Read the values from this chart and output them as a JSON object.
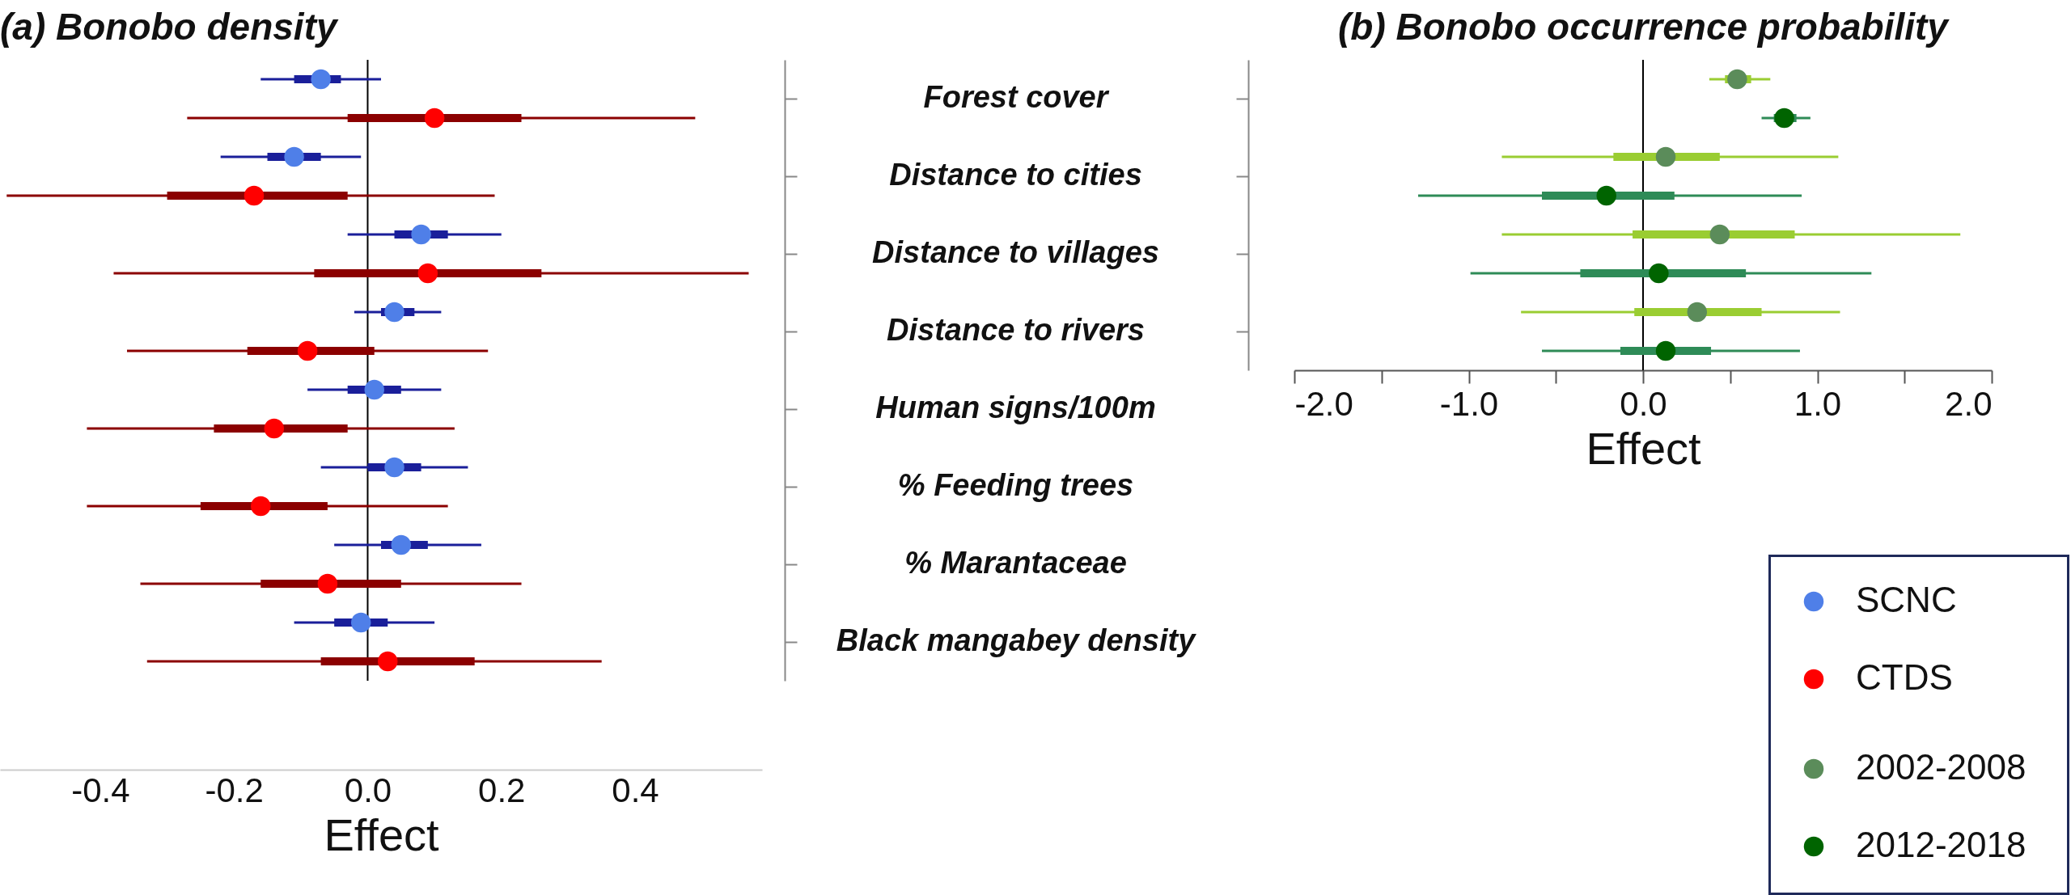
{
  "chart_data": [
    {
      "type": "scatter",
      "title": "(a) Bonobo density",
      "xlabel": "Effect",
      "orientation": "horizontal",
      "marker": "circle",
      "legend": "right",
      "categories": [
        "Forest cover",
        "Distance to cities",
        "Distance to villages",
        "Distance to rivers",
        "Human signs/100m",
        "% Feeding trees",
        "% Marantaceae",
        "Black mangabey density"
      ],
      "xlim": [
        -0.55,
        0.59
      ],
      "xticks": [
        -0.4,
        -0.2,
        {
          "value": 0,
          "label": "0.0"
        },
        0.2,
        0.4
      ],
      "ref_lines": [
        {
          "axis": "x",
          "value": 0,
          "color": "#000000"
        }
      ],
      "series": [
        {
          "type": "bar",
          "color": "#1a1f9a",
          "base": [
            -0.11,
            -0.15,
            0.04,
            0.02,
            -0.03,
            0.0,
            0.02,
            -0.05
          ],
          "values": [
            0.07,
            0.08,
            0.08,
            0.05,
            0.08,
            0.08,
            0.07,
            0.08
          ],
          "errors": [
            [
              -0.16,
              0.02
            ],
            [
              -0.22,
              -0.01
            ],
            [
              -0.03,
              0.2
            ],
            [
              -0.02,
              0.11
            ],
            [
              -0.09,
              0.11
            ],
            [
              -0.07,
              0.15
            ],
            [
              -0.05,
              0.17
            ],
            [
              -0.11,
              0.1
            ]
          ]
        },
        {
          "name": "SCNC",
          "color": "#4f7fe8",
          "values": [
            -0.07,
            -0.11,
            0.08,
            0.04,
            0.01,
            0.04,
            0.05,
            -0.01
          ]
        },
        {
          "type": "bar",
          "color": "#8b0000",
          "base": [
            -0.03,
            -0.3,
            -0.08,
            -0.18,
            -0.23,
            -0.25,
            -0.16,
            -0.07
          ],
          "values": [
            0.26,
            0.27,
            0.34,
            0.19,
            0.2,
            0.19,
            0.21,
            0.23
          ],
          "errors": [
            [
              -0.27,
              0.49
            ],
            [
              -0.54,
              0.19
            ],
            [
              -0.38,
              0.57
            ],
            [
              -0.36,
              0.18
            ],
            [
              -0.42,
              0.13
            ],
            [
              -0.42,
              0.12
            ],
            [
              -0.34,
              0.23
            ],
            [
              -0.33,
              0.35
            ]
          ]
        },
        {
          "name": "CTDS",
          "color": "#ff0000",
          "values": [
            0.1,
            -0.17,
            0.09,
            -0.09,
            -0.14,
            -0.16,
            -0.06,
            0.03
          ]
        }
      ]
    },
    {
      "type": "scatter",
      "title": "(b) Bonobo occurrence probability",
      "xlabel": "Effect",
      "orientation": "horizontal",
      "marker": "circle",
      "legend": "bottom",
      "tick_labels": "x",
      "categories": [
        null,
        null,
        null,
        null
      ],
      "xlim": [
        -2,
        2
      ],
      "xticks": [
        {
          "value": -2,
          "label": "-2.0"
        },
        {
          "value": -1.5,
          "label": null
        },
        {
          "value": -1,
          "label": "-1.0"
        },
        {
          "value": -0.5,
          "label": null
        },
        {
          "value": 0,
          "label": "0.0"
        },
        {
          "value": 0.5,
          "label": null
        },
        {
          "value": 1,
          "label": "1.0"
        },
        {
          "value": 1.5,
          "label": null
        },
        {
          "value": 2,
          "label": "2.0"
        }
      ],
      "ref_lines": [
        {
          "axis": "x",
          "value": 0,
          "color": "#000000"
        }
      ],
      "series": [
        {
          "type": "bar",
          "color": "#9acd32",
          "base": [
            0.47,
            -0.17,
            -0.06,
            -0.05
          ],
          "values": [
            0.15,
            0.61,
            0.93,
            0.73
          ],
          "errors": [
            [
              0.38,
              0.73
            ],
            [
              -0.81,
              1.12
            ],
            [
              -0.81,
              1.82
            ],
            [
              -0.7,
              1.13
            ]
          ]
        },
        {
          "name": "2002-2008",
          "color": "#5b8c5a",
          "values": [
            0.54,
            0.13,
            0.44,
            0.31
          ]
        },
        {
          "type": "bar",
          "color": "#2e8b57",
          "base": [
            0.75,
            -0.58,
            -0.36,
            -0.13
          ],
          "values": [
            0.13,
            0.76,
            0.95,
            0.52
          ],
          "errors": [
            [
              0.68,
              0.96
            ],
            [
              -1.29,
              0.91
            ],
            [
              -0.99,
              1.31
            ],
            [
              -0.58,
              0.9
            ]
          ]
        },
        {
          "name": "2012-2018",
          "color": "#006400",
          "values": [
            0.81,
            -0.21,
            0.09,
            0.13
          ]
        }
      ]
    }
  ]
}
